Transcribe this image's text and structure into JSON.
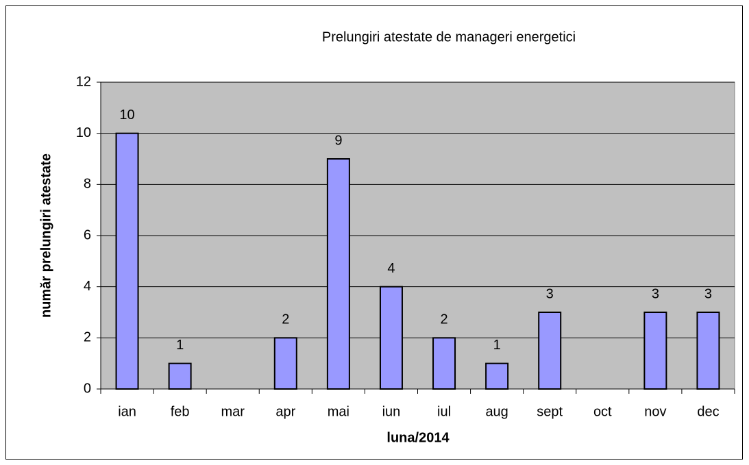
{
  "chart_data": {
    "type": "bar",
    "title": "Prelungiri atestate de manageri energetici",
    "x_label": "luna/2014",
    "y_label": "număr prelungiri atestate",
    "categories": [
      "ian",
      "feb",
      "mar",
      "apr",
      "mai",
      "iun",
      "iul",
      "aug",
      "sept",
      "oct",
      "nov",
      "dec"
    ],
    "values": [
      10,
      1,
      null,
      2,
      9,
      4,
      2,
      1,
      3,
      null,
      3,
      3
    ],
    "color": "#9999ff",
    "plot_background": "#c0c0c0",
    "ylim": [
      0,
      12
    ],
    "yticks": [
      0,
      2,
      4,
      6,
      8,
      10,
      12
    ],
    "grid": true
  }
}
